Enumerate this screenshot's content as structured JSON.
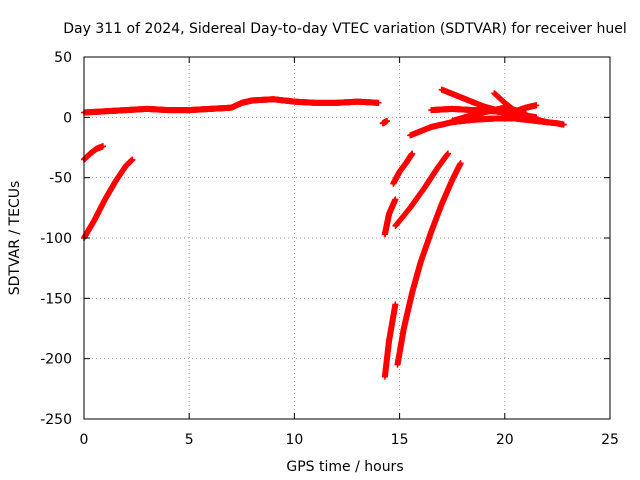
{
  "chart_data": {
    "type": "scatter",
    "title": "Day 311 of 2024, Sidereal Day-to-day VTEC variation (SDTVAR) for receiver huel",
    "xlabel": "GPS time / hours",
    "ylabel": "SDTVAR / TECUs",
    "xlim": [
      0,
      25
    ],
    "ylim": [
      -250,
      50
    ],
    "xticks": [
      0,
      5,
      10,
      15,
      20,
      25
    ],
    "yticks": [
      -250,
      -200,
      -150,
      -100,
      -50,
      0,
      50
    ],
    "grid": true,
    "marker": "+",
    "marker_color": "#ff0000",
    "series": [
      {
        "x": [
          0,
          1,
          2,
          3,
          4,
          5,
          6,
          7,
          7.5,
          8,
          9,
          10,
          11,
          12,
          13,
          14.0
        ],
        "y": [
          4,
          5,
          6,
          7,
          6,
          6,
          7,
          8,
          12,
          14,
          15,
          13,
          12,
          12,
          13,
          12
        ]
      },
      {
        "x": [
          0,
          0.3,
          0.6,
          0.9
        ],
        "y": [
          -35,
          -30,
          -26,
          -24
        ]
      },
      {
        "x": [
          0,
          0.5,
          1.0,
          1.5,
          2.0,
          2.3
        ],
        "y": [
          -100,
          -85,
          -68,
          -53,
          -40,
          -35
        ]
      },
      {
        "x": [
          14.2,
          14.4
        ],
        "y": [
          -5,
          -3
        ]
      },
      {
        "x": [
          14.3,
          14.5,
          14.8
        ],
        "y": [
          -97,
          -80,
          -68
        ]
      },
      {
        "x": [
          14.3,
          14.5,
          14.8
        ],
        "y": [
          -215,
          -185,
          -155
        ]
      },
      {
        "x": [
          14.7,
          15.0,
          15.3,
          15.6
        ],
        "y": [
          -55,
          -45,
          -38,
          -30
        ]
      },
      {
        "x": [
          14.8,
          15.5,
          16.2,
          16.8,
          17.3
        ],
        "y": [
          -90,
          -75,
          -58,
          -42,
          -30
        ]
      },
      {
        "x": [
          14.9,
          15.2,
          15.6,
          16.0,
          16.5,
          17.0,
          17.5,
          17.9
        ],
        "y": [
          -205,
          -175,
          -145,
          -120,
          -95,
          -72,
          -52,
          -38
        ]
      },
      {
        "x": [
          15.5,
          16.5,
          17.5,
          18.5,
          19.5,
          20.5,
          21.5,
          22.5,
          22.8
        ],
        "y": [
          -15,
          -8,
          -4,
          -2,
          -1,
          -1,
          -3,
          -5,
          -6
        ]
      },
      {
        "x": [
          16.5,
          17.5,
          18.5,
          19.5,
          20.5,
          21.5
        ],
        "y": [
          6,
          7,
          6,
          5,
          3,
          0
        ]
      },
      {
        "x": [
          17.0,
          18.0,
          19.0,
          20.0,
          21.0,
          22.0
        ],
        "y": [
          23,
          16,
          9,
          4,
          0,
          -4
        ]
      },
      {
        "x": [
          17.5,
          18.5,
          19.5,
          20.0,
          20.5,
          21.0
        ],
        "y": [
          -3,
          2,
          6,
          8,
          6,
          3
        ]
      },
      {
        "x": [
          19.5,
          20.0,
          20.5,
          21.0,
          21.5
        ],
        "y": [
          20,
          12,
          5,
          0,
          -3
        ]
      },
      {
        "x": [
          20.0,
          20.5,
          21.0,
          21.5
        ],
        "y": [
          2,
          5,
          8,
          10
        ]
      }
    ]
  }
}
